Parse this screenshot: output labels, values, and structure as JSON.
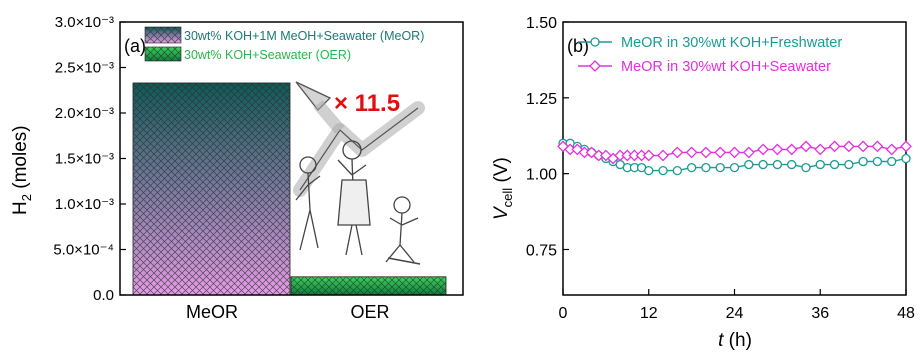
{
  "chart_data": [
    {
      "panel_label": "(a)",
      "type": "bar",
      "categories": [
        "MeOR",
        "OER"
      ],
      "series": [
        {
          "name": "30wt% KOH+1M MeOH+Seawater (MeOR)",
          "values": [
            0.00233,
            null
          ]
        },
        {
          "name": "30wt% KOH+Seawater (OER)",
          "values": [
            null,
            0.0002
          ]
        }
      ],
      "xlabel": "",
      "ylabel_main": "H",
      "ylabel_sub": "2",
      "ylabel_rest": " (moles)",
      "ylim": [
        0,
        0.003
      ],
      "yticks": [
        {
          "value": 0,
          "label": "0.0"
        },
        {
          "value": 0.0005,
          "label": "5.0×10⁻⁴"
        },
        {
          "value": 0.001,
          "label": "1.0×10⁻³"
        },
        {
          "value": 0.0015,
          "label": "1.5×10⁻³"
        },
        {
          "value": 0.002,
          "label": "2.0×10⁻³"
        },
        {
          "value": 0.0025,
          "label": "2.5×10⁻³"
        },
        {
          "value": 0.003,
          "label": "3.0×10⁻³"
        }
      ],
      "annotation": "× 11.5",
      "colors": {
        "meor_top": "#0e5a58",
        "meor_bottom": "#e59be6",
        "oer_top": "#39d45a",
        "oer_bottom": "#107c3c",
        "annotation": "#e01010"
      }
    },
    {
      "panel_label": "(b)",
      "type": "line",
      "xlabel": "t (h)",
      "ylabel_main": "V",
      "ylabel_sub": "cell",
      "ylabel_rest": " (V)",
      "xlim": [
        0,
        48
      ],
      "ylim": [
        0.6,
        1.5
      ],
      "xticks": [
        0,
        12,
        24,
        36,
        48
      ],
      "yticks": [
        0.75,
        1.0,
        1.25,
        1.5
      ],
      "ytick_labels": [
        "0.75",
        "1.00",
        "1.25",
        "1.50"
      ],
      "series": [
        {
          "name": "MeOR in 30%wt KOH+Freshwater",
          "color": "#1a9c95",
          "marker": "circle",
          "x": [
            0,
            1,
            2,
            3,
            4,
            5,
            6,
            7,
            8,
            9,
            10,
            11,
            12,
            14,
            16,
            18,
            20,
            22,
            24,
            26,
            28,
            30,
            32,
            34,
            36,
            38,
            40,
            42,
            44,
            46,
            48
          ],
          "y": [
            1.1,
            1.1,
            1.09,
            1.08,
            1.07,
            1.06,
            1.05,
            1.04,
            1.03,
            1.02,
            1.02,
            1.02,
            1.01,
            1.01,
            1.01,
            1.02,
            1.02,
            1.02,
            1.02,
            1.03,
            1.03,
            1.03,
            1.03,
            1.02,
            1.03,
            1.03,
            1.03,
            1.04,
            1.04,
            1.04,
            1.05
          ]
        },
        {
          "name": "MeOR in 30%wt KOH+Seawater",
          "color": "#e62fe0",
          "marker": "diamond",
          "x": [
            0,
            1,
            2,
            3,
            4,
            5,
            6,
            7,
            8,
            9,
            10,
            11,
            12,
            14,
            16,
            18,
            20,
            22,
            24,
            26,
            28,
            30,
            32,
            34,
            36,
            38,
            40,
            42,
            44,
            46,
            48
          ],
          "y": [
            1.09,
            1.08,
            1.08,
            1.07,
            1.07,
            1.06,
            1.06,
            1.05,
            1.06,
            1.06,
            1.06,
            1.06,
            1.06,
            1.06,
            1.07,
            1.07,
            1.07,
            1.07,
            1.07,
            1.07,
            1.08,
            1.08,
            1.08,
            1.09,
            1.08,
            1.09,
            1.09,
            1.09,
            1.09,
            1.08,
            1.09
          ]
        }
      ]
    }
  ]
}
